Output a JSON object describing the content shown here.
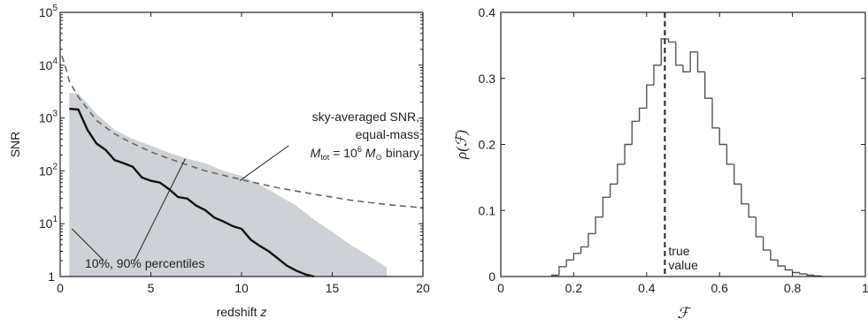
{
  "chart_data": [
    {
      "type": "area",
      "xlabel": "redshift",
      "xlabel_var": "z",
      "ylabel": "SNR",
      "xlim": [
        0,
        20
      ],
      "ylim": [
        1,
        100000
      ],
      "yscale": "log",
      "xticks": [
        "0",
        "5",
        "10",
        "15",
        "20"
      ],
      "yticks": [
        {
          "base": "1",
          "exp": ""
        },
        {
          "base": "10",
          "exp": "1"
        },
        {
          "base": "10",
          "exp": "2"
        },
        {
          "base": "10",
          "exp": "3"
        },
        {
          "base": "10",
          "exp": "4"
        },
        {
          "base": "10",
          "exp": "5"
        }
      ],
      "median": {
        "x": [
          0.5,
          1,
          1.5,
          2,
          2.5,
          3,
          3.5,
          4,
          4.5,
          5,
          5.5,
          6,
          6.5,
          7,
          7.5,
          8,
          8.5,
          9,
          9.5,
          10,
          10.5,
          11,
          11.5,
          12,
          12.5,
          13,
          13.5,
          14
        ],
        "y": [
          1500,
          1450,
          600,
          330,
          250,
          160,
          140,
          120,
          75,
          65,
          60,
          45,
          32,
          30,
          22,
          18,
          13,
          11,
          9,
          8,
          5,
          3.8,
          3,
          2.2,
          1.6,
          1.3,
          1.1,
          1.0
        ]
      },
      "band": {
        "x": [
          0.5,
          1,
          2,
          3,
          4,
          5,
          6,
          7,
          8,
          9,
          10,
          11,
          12,
          13,
          14,
          15,
          16,
          17,
          18
        ],
        "upper": [
          3000,
          2900,
          1200,
          600,
          400,
          300,
          220,
          170,
          140,
          100,
          80,
          55,
          35,
          22,
          12,
          7,
          4,
          2.5,
          1.5
        ],
        "lower": [
          1,
          1,
          1,
          1,
          1,
          1,
          1,
          1,
          1,
          1,
          1,
          1,
          1,
          1,
          1,
          1,
          1,
          1,
          1
        ]
      },
      "sky_averaged": {
        "x": [
          0.1,
          0.3,
          0.5,
          1,
          1.5,
          2,
          3,
          4,
          5,
          6,
          7,
          8,
          10,
          12,
          14,
          16,
          18,
          20
        ],
        "y": [
          15000,
          9000,
          5000,
          2500,
          1500,
          900,
          500,
          330,
          230,
          170,
          130,
          100,
          68,
          48,
          36,
          28,
          23,
          20
        ]
      },
      "annotations": {
        "sky_line1": "sky-averaged SNR,",
        "sky_line2": "equal-mass",
        "sky_line3_M": "M",
        "sky_line3_sub": "tot",
        "sky_line3_eq": " = 10",
        "sky_line3_exp": "6",
        "sky_line3_Msun": " M",
        "sky_line3_sun": "⊙",
        "sky_line3_end": " binary",
        "percentiles": "10%, 90% percentiles"
      }
    },
    {
      "type": "bar",
      "subtype": "histogram",
      "xlabel": "ℱ",
      "ylabel": "ρ(ℱ)",
      "xlim": [
        0,
        1
      ],
      "ylim": [
        0,
        0.4
      ],
      "xticks": [
        "0",
        "0.2",
        "0.4",
        "0.6",
        "0.8",
        "1"
      ],
      "yticks": [
        "0",
        "0.1",
        "0.2",
        "0.3",
        "0.4"
      ],
      "bin_width": 0.02,
      "bin_edges_start": 0.14,
      "values": [
        0.002,
        0.015,
        0.025,
        0.035,
        0.045,
        0.065,
        0.09,
        0.12,
        0.14,
        0.17,
        0.2,
        0.235,
        0.255,
        0.29,
        0.32,
        0.36,
        0.355,
        0.32,
        0.31,
        0.34,
        0.31,
        0.27,
        0.225,
        0.2,
        0.17,
        0.14,
        0.11,
        0.09,
        0.06,
        0.04,
        0.025,
        0.016,
        0.01,
        0.006,
        0.004,
        0.002,
        0.001
      ],
      "true_value": 0.45,
      "true_value_label_1": "true",
      "true_value_label_2": "value"
    }
  ]
}
